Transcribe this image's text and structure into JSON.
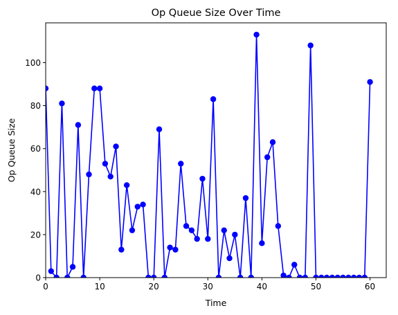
{
  "chart_data": {
    "type": "line",
    "title": "Op Queue Size Over Time",
    "xlabel": "Time",
    "ylabel": "Op Queue Size",
    "xlim": [
      0,
      63
    ],
    "ylim": [
      0,
      118.5
    ],
    "xticks": [
      0,
      10,
      20,
      30,
      40,
      50,
      60
    ],
    "yticks": [
      0,
      20,
      40,
      60,
      80,
      100
    ],
    "grid": false,
    "legend": "none",
    "series": [
      {
        "color": "#0000ff",
        "marker": "circle",
        "x": [
          0,
          1,
          2,
          3,
          4,
          5,
          6,
          7,
          8,
          9,
          10,
          11,
          12,
          13,
          14,
          15,
          16,
          17,
          18,
          19,
          20,
          21,
          22,
          23,
          24,
          25,
          26,
          27,
          28,
          29,
          30,
          31,
          32,
          33,
          34,
          35,
          36,
          37,
          38,
          39,
          40,
          41,
          42,
          43,
          44,
          45,
          46,
          47,
          48,
          49,
          50,
          51,
          52,
          53,
          54,
          55,
          56,
          57,
          58,
          59,
          60
        ],
        "values": [
          88,
          3,
          0,
          81,
          0,
          5,
          71,
          0,
          48,
          88,
          88,
          53,
          47,
          61,
          13,
          43,
          22,
          33,
          34,
          0,
          0,
          69,
          0,
          14,
          13,
          53,
          24,
          22,
          18,
          46,
          18,
          83,
          0,
          22,
          9,
          20,
          0,
          37,
          0,
          113,
          16,
          56,
          63,
          24,
          1,
          0,
          6,
          0,
          0,
          108,
          0,
          0,
          0,
          0,
          0,
          0,
          0,
          0,
          0,
          0,
          91
        ]
      }
    ]
  }
}
